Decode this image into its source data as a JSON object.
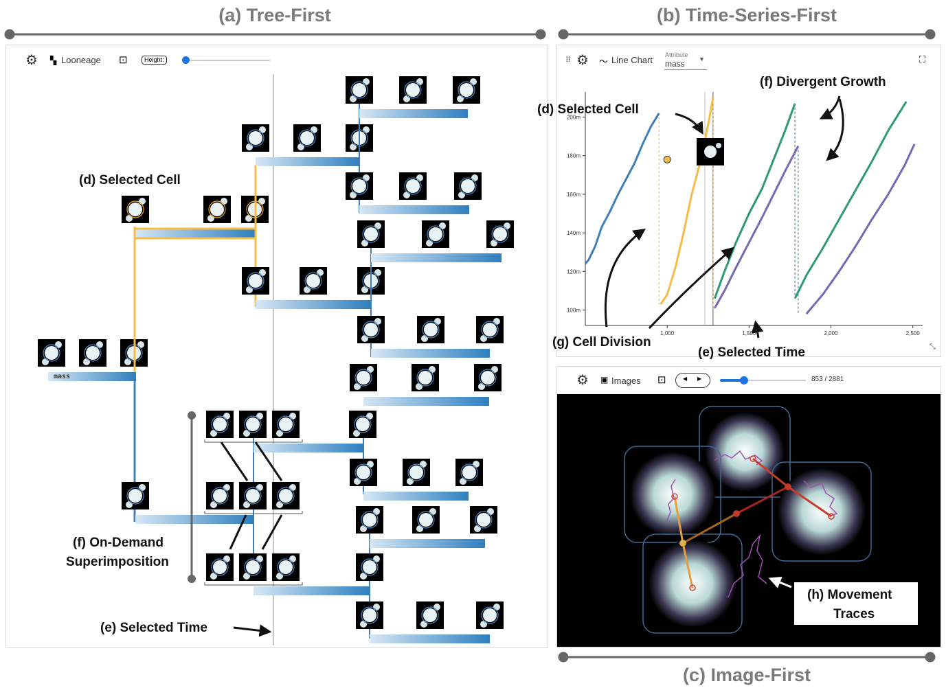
{
  "sections": {
    "a": "(a) Tree-First",
    "b": "(b) Time-Series-First",
    "c": "(c) Image-First"
  },
  "tree_panel": {
    "toolbar": {
      "app_label": "Looneage",
      "height_label": "Height:"
    },
    "height_slider_value": 0.0,
    "mass_tag": "mass"
  },
  "line_panel": {
    "toolbar": {
      "chart_label": "Line Chart",
      "attribute_label": "Attribute",
      "attribute_value": "mass"
    },
    "chart_data": {
      "type": "line",
      "title": "",
      "xlabel": "",
      "ylabel": "",
      "xlim": [
        500,
        2560
      ],
      "ylim": [
        92,
        213
      ],
      "x_ticks": [
        "1,000",
        "1,500",
        "2,000",
        "2,500"
      ],
      "y_ticks": [
        "100m",
        "120m",
        "140m",
        "160m",
        "180m",
        "200m"
      ],
      "selected_time": 1280,
      "series": [
        {
          "color": "#3f7fb5",
          "x": [
            500,
            520,
            560,
            600,
            650,
            700,
            750,
            800,
            850,
            900,
            950
          ],
          "y": [
            124,
            126,
            133,
            143,
            151,
            160,
            168,
            176,
            186,
            195,
            202
          ]
        },
        {
          "color": "#f5bc48",
          "x": [
            960,
            1000,
            1050,
            1100,
            1150,
            1200,
            1250,
            1280
          ],
          "y": [
            103,
            108,
            122,
            140,
            160,
            176,
            196,
            210
          ]
        },
        {
          "color": "#2e9a6e",
          "x": [
            1290,
            1350,
            1420,
            1500,
            1580,
            1650,
            1720,
            1780
          ],
          "y": [
            106,
            120,
            135,
            150,
            163,
            178,
            193,
            207
          ]
        },
        {
          "color": "#7a67b3",
          "x": [
            1290,
            1350,
            1420,
            1500,
            1580,
            1650,
            1720,
            1800
          ],
          "y": [
            101,
            110,
            122,
            135,
            148,
            160,
            172,
            185
          ]
        },
        {
          "color": "#2e9a6e",
          "x": [
            1780,
            1850,
            1950,
            2050,
            2150,
            2250,
            2350,
            2460
          ],
          "y": [
            106,
            118,
            132,
            147,
            162,
            177,
            193,
            208
          ]
        },
        {
          "color": "#7a67b3",
          "x": [
            1850,
            1950,
            2050,
            2150,
            2250,
            2350,
            2450,
            2510
          ],
          "y": [
            98,
            108,
            120,
            133,
            147,
            160,
            175,
            186
          ]
        }
      ]
    }
  },
  "image_panel": {
    "toolbar": {
      "label": "Images",
      "frame_readout": "853 / 2881"
    },
    "frame_current": 853,
    "frame_total": 2881
  },
  "annotations": {
    "selected_cell": "(d) Selected Cell",
    "on_demand_1": "(f) On-Demand",
    "on_demand_2": "Superimposition",
    "selected_time": "(e) Selected Time",
    "divergent_growth": "(f) Divergent Growth",
    "cell_division": "(g) Cell Division",
    "movement_1": "(h) Movement",
    "movement_2": "Traces"
  },
  "colors": {
    "orange": "#f5bc48",
    "blue": "#3f7fb5",
    "green": "#2e9a6e",
    "purple": "#7a67b3",
    "red": "#d42a2a"
  }
}
